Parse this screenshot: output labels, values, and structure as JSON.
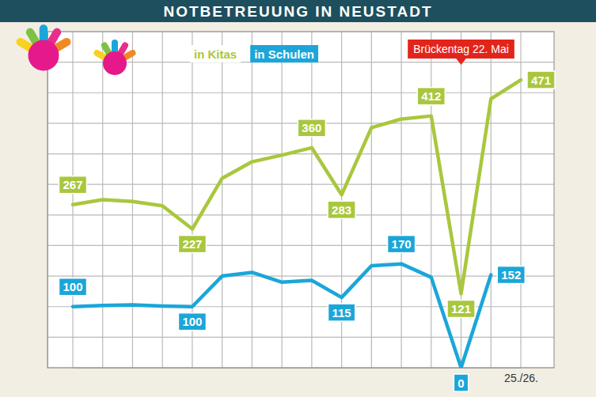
{
  "chart_data": {
    "type": "line",
    "title": "NOTBETREUUNG IN NEUSTADT",
    "categories": [
      null,
      null,
      null,
      null,
      null,
      null,
      null,
      null,
      null,
      null,
      null,
      null,
      null,
      null,
      null,
      "25./26."
    ],
    "series": [
      {
        "name": "in Kitas",
        "color": "#a9c73d",
        "values": [
          267,
          275,
          272,
          265,
          227,
          310,
          337,
          348,
          360,
          283,
          393,
          407,
          412,
          121,
          440,
          471
        ],
        "value_labels": [
          "267",
          null,
          null,
          null,
          "227",
          null,
          null,
          null,
          "360",
          "283",
          null,
          null,
          "412",
          "121",
          null,
          "471"
        ]
      },
      {
        "name": "in Schulen",
        "color": "#1ba6d9",
        "values": [
          100,
          102,
          103,
          101,
          100,
          150,
          156,
          140,
          143,
          115,
          167,
          170,
          148,
          0,
          152,
          null
        ],
        "value_labels": [
          "100",
          null,
          null,
          null,
          "100",
          null,
          null,
          null,
          null,
          "115",
          null,
          "170",
          null,
          "0",
          "152",
          null
        ]
      }
    ],
    "annotations": [
      {
        "text": "Brückentag 22. Mai",
        "x": 13,
        "color": "#e3241b"
      }
    ],
    "ylim": [
      0,
      550
    ],
    "yticks": [
      0,
      50,
      100,
      150,
      200,
      250,
      300,
      350,
      400,
      450,
      500,
      550
    ],
    "grid": true,
    "tick_labels": "x",
    "legend": "top"
  }
}
